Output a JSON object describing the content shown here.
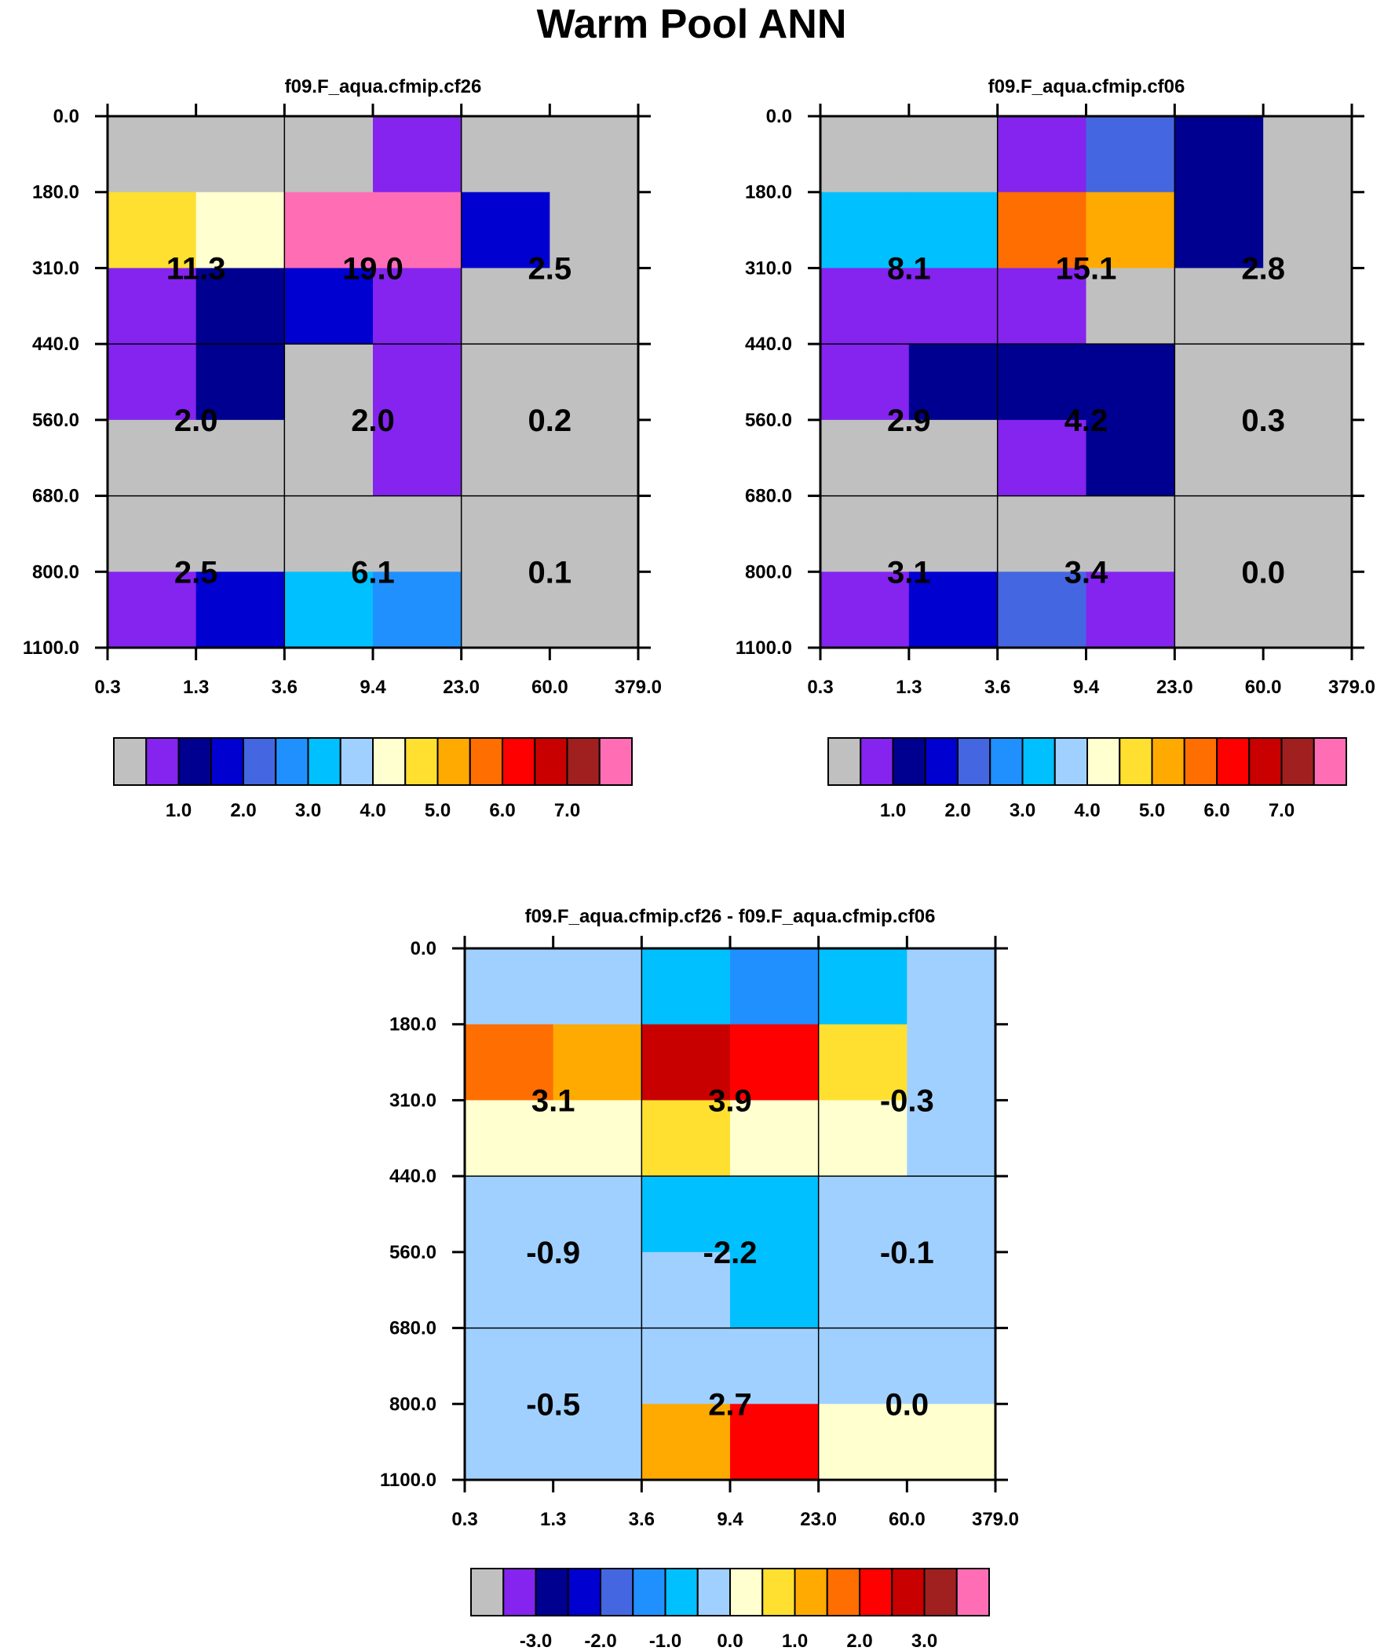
{
  "title": "Warm Pool ANN",
  "palette": [
    "#c0c0c0",
    "#8424ee",
    "#000090",
    "#0000d0",
    "#4466e0",
    "#2090ff",
    "#00c0ff",
    "#a0d0ff",
    "#ffffd0",
    "#ffe030",
    "#ffaa00",
    "#ff6e00",
    "#ff0000",
    "#c80000",
    "#a02020",
    "#ff6eb4"
  ],
  "chart_data": [
    {
      "type": "heatmap",
      "title": "f09.F_aqua.cfmip.cf26",
      "x_tick_labels": [
        "0.3",
        "1.3",
        "3.6",
        "9.4",
        "23.0",
        "60.0",
        "379.0"
      ],
      "y_tick_labels": [
        "0.0",
        "180.0",
        "310.0",
        "440.0",
        "560.0",
        "680.0",
        "800.0",
        "1100.0"
      ],
      "cell_color_index": [
        [
          0,
          0,
          0,
          1,
          0,
          0
        ],
        [
          9,
          8,
          15,
          15,
          3,
          0
        ],
        [
          1,
          2,
          3,
          1,
          0,
          0
        ],
        [
          1,
          2,
          0,
          1,
          0,
          0
        ],
        [
          0,
          0,
          0,
          1,
          0,
          0
        ],
        [
          0,
          0,
          0,
          0,
          0,
          0
        ],
        [
          1,
          3,
          6,
          5,
          0,
          0
        ]
      ],
      "block_labels": [
        [
          "11.3",
          "19.0",
          "2.5"
        ],
        [
          "2.0",
          "2.0",
          "0.2"
        ],
        [
          "2.5",
          "6.1",
          "0.1"
        ]
      ],
      "colorbar_labels": [
        "1.0",
        "2.0",
        "3.0",
        "4.0",
        "5.0",
        "6.0",
        "7.0"
      ]
    },
    {
      "type": "heatmap",
      "title": "f09.F_aqua.cfmip.cf06",
      "x_tick_labels": [
        "0.3",
        "1.3",
        "3.6",
        "9.4",
        "23.0",
        "60.0",
        "379.0"
      ],
      "y_tick_labels": [
        "0.0",
        "180.0",
        "310.0",
        "440.0",
        "560.0",
        "680.0",
        "800.0",
        "1100.0"
      ],
      "cell_color_index": [
        [
          0,
          0,
          1,
          4,
          2,
          0
        ],
        [
          6,
          6,
          11,
          10,
          2,
          0
        ],
        [
          1,
          1,
          1,
          0,
          0,
          0
        ],
        [
          1,
          2,
          2,
          2,
          0,
          0
        ],
        [
          0,
          0,
          1,
          2,
          0,
          0
        ],
        [
          0,
          0,
          0,
          0,
          0,
          0
        ],
        [
          1,
          3,
          4,
          1,
          0,
          0
        ]
      ],
      "block_labels": [
        [
          "8.1",
          "15.1",
          "2.8"
        ],
        [
          "2.9",
          "4.2",
          "0.3"
        ],
        [
          "3.1",
          "3.4",
          "0.0"
        ]
      ],
      "colorbar_labels": [
        "1.0",
        "2.0",
        "3.0",
        "4.0",
        "5.0",
        "6.0",
        "7.0"
      ]
    },
    {
      "type": "heatmap",
      "title": "f09.F_aqua.cfmip.cf26 - f09.F_aqua.cfmip.cf06",
      "x_tick_labels": [
        "0.3",
        "1.3",
        "3.6",
        "9.4",
        "23.0",
        "60.0",
        "379.0"
      ],
      "y_tick_labels": [
        "0.0",
        "180.0",
        "310.0",
        "440.0",
        "560.0",
        "680.0",
        "800.0",
        "1100.0"
      ],
      "cell_color_index": [
        [
          7,
          7,
          6,
          5,
          6,
          7
        ],
        [
          11,
          10,
          13,
          12,
          9,
          7
        ],
        [
          8,
          8,
          9,
          8,
          8,
          7
        ],
        [
          7,
          7,
          6,
          6,
          7,
          7
        ],
        [
          7,
          7,
          7,
          6,
          7,
          7
        ],
        [
          7,
          7,
          7,
          7,
          7,
          7
        ],
        [
          7,
          7,
          10,
          12,
          8,
          8
        ]
      ],
      "block_labels": [
        [
          "3.1",
          "3.9",
          "-0.3"
        ],
        [
          "-0.9",
          "-2.2",
          "-0.1"
        ],
        [
          "-0.5",
          "2.7",
          "0.0"
        ]
      ],
      "colorbar_labels": [
        "-3.0",
        "-2.0",
        "-1.0",
        "0.0",
        "1.0",
        "2.0",
        "3.0"
      ]
    }
  ]
}
